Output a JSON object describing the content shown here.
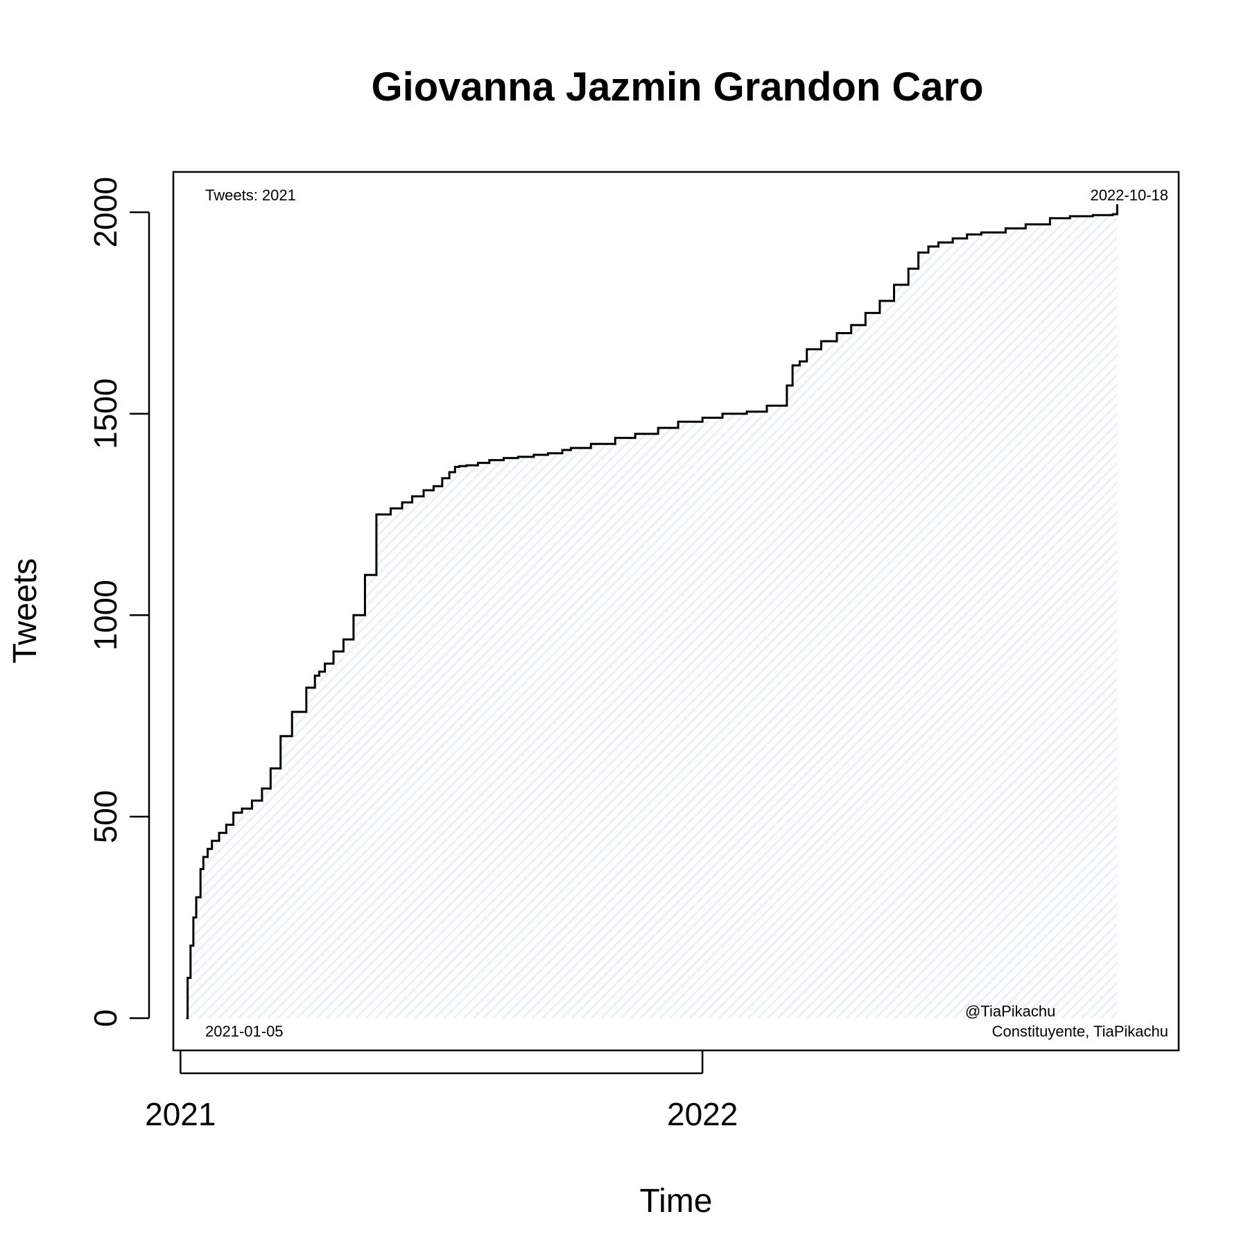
{
  "chart_data": {
    "type": "area",
    "title": "Giovanna Jazmin Grandon Caro",
    "xlabel": "Time",
    "ylabel": "Tweets",
    "x_ticks": [
      "2021",
      "2022"
    ],
    "y_ticks": [
      0,
      500,
      1000,
      1500,
      2000
    ],
    "xlim": [
      "2020-12-27",
      "2022-11-30"
    ],
    "ylim": [
      -80,
      2100
    ],
    "grid": false,
    "fill_color": "#e6f3f5",
    "line_color": "#000000",
    "annotations": {
      "top_left": "Tweets: 2021",
      "top_right": "2022-10-18",
      "bottom_left": "2021-01-05",
      "bottom_right_line1": "@TiaPikachu",
      "bottom_right_line2": "Constituyente, TiaPikachu"
    },
    "series": [
      {
        "x": [
          "2021-01-05",
          "2021-01-06",
          "2021-01-08",
          "2021-01-10",
          "2021-01-12",
          "2021-01-15",
          "2021-01-17",
          "2021-01-20",
          "2021-01-23",
          "2021-01-28",
          "2021-02-02",
          "2021-02-07",
          "2021-02-13",
          "2021-02-20",
          "2021-02-27",
          "2021-03-05",
          "2021-03-12",
          "2021-03-20",
          "2021-03-30",
          "2021-04-05",
          "2021-04-08",
          "2021-04-12",
          "2021-04-18",
          "2021-04-25",
          "2021-05-02",
          "2021-05-10",
          "2021-05-18",
          "2021-05-28",
          "2021-06-05",
          "2021-06-12",
          "2021-06-20",
          "2021-06-27",
          "2021-07-03",
          "2021-07-08",
          "2021-07-12",
          "2021-07-15",
          "2021-07-20",
          "2021-07-28",
          "2021-08-05",
          "2021-08-15",
          "2021-08-25",
          "2021-09-05",
          "2021-09-15",
          "2021-09-25",
          "2021-10-01",
          "2021-10-15",
          "2021-11-01",
          "2021-11-15",
          "2021-12-01",
          "2021-12-15",
          "2022-01-01",
          "2022-01-15",
          "2022-02-01",
          "2022-02-15",
          "2022-03-01",
          "2022-03-05",
          "2022-03-10",
          "2022-03-15",
          "2022-03-25",
          "2022-04-05",
          "2022-04-15",
          "2022-04-25",
          "2022-05-05",
          "2022-05-15",
          "2022-05-25",
          "2022-06-01",
          "2022-06-08",
          "2022-06-15",
          "2022-06-25",
          "2022-07-05",
          "2022-07-15",
          "2022-08-01",
          "2022-08-15",
          "2022-09-01",
          "2022-09-15",
          "2022-10-01",
          "2022-10-15",
          "2022-10-18"
        ],
        "y": [
          0,
          100,
          180,
          250,
          300,
          370,
          400,
          420,
          440,
          460,
          480,
          510,
          520,
          540,
          570,
          620,
          700,
          760,
          820,
          850,
          860,
          880,
          910,
          940,
          1000,
          1100,
          1250,
          1265,
          1280,
          1295,
          1310,
          1320,
          1340,
          1355,
          1368,
          1370,
          1372,
          1378,
          1385,
          1390,
          1393,
          1398,
          1402,
          1410,
          1415,
          1425,
          1440,
          1450,
          1465,
          1480,
          1490,
          1500,
          1505,
          1520,
          1570,
          1620,
          1630,
          1660,
          1680,
          1700,
          1720,
          1750,
          1780,
          1820,
          1860,
          1900,
          1915,
          1925,
          1935,
          1945,
          1950,
          1960,
          1970,
          1985,
          1990,
          1993,
          1995,
          2020
        ]
      }
    ]
  }
}
